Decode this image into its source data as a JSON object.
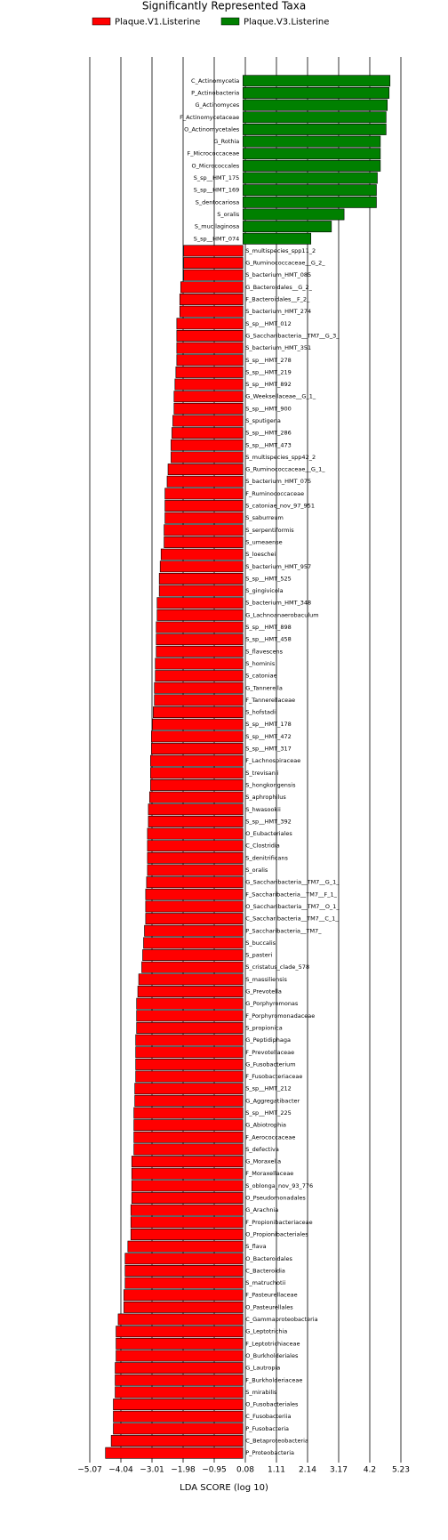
{
  "chart_data": {
    "type": "bar",
    "orientation": "horizontal",
    "title": "Significantly Represented Taxa",
    "xlabel": "LDA SCORE (log 10)",
    "categories": [
      "C_Actinomycetia",
      "P_Actinobacteria",
      "G_Actinomyces",
      "F_Actinomycetaceae",
      "O_Actinomycetales",
      "G_Rothia",
      "F_Micrococcaceae",
      "O_Micrococcales",
      "S_sp__HMT_175",
      "S_sp__HMT_169",
      "S_dentocariosa",
      "S_oralis",
      "S_mucilaginosa",
      "S_sp__HMT_074",
      "S_multispecies_spp11_2",
      "G_Ruminococcaceae__G_2_",
      "S_bacterium_HMT_085",
      "G_Bacteroidales__G_2_",
      "F_Bacteroidales__F_2_",
      "S_bacterium_HMT_274",
      "S_sp__HMT_012",
      "G_Saccharibacteria__TM7__G_3_",
      "S_bacterium_HMT_351",
      "S_sp__HMT_278",
      "S_sp__HMT_219",
      "S_sp__HMT_892",
      "G_Weeksellaceae__G_1_",
      "S_sp__HMT_900",
      "S_sputigena",
      "S_sp__HMT_286",
      "S_sp__HMT_473",
      "S_multispecies_spp42_2",
      "G_Ruminococcaceae__G_1_",
      "S_bacterium_HMT_075",
      "F_Ruminococcaceae",
      "S_catoniae_nov_97_951",
      "S_saburreum",
      "S_serpentiformis",
      "S_umeaense",
      "S_loeschei",
      "S_bacterium_HMT_957",
      "S_sp__HMT_525",
      "S_gingivicola",
      "S_bacterium_HMT_348",
      "G_Lachnoanaerobaculum",
      "S_sp__HMT_898",
      "S_sp__HMT_458",
      "S_flavescens",
      "S_hominis",
      "S_catoniae",
      "G_Tannerella",
      "F_Tannerellaceae",
      "S_hofstadii",
      "S_sp__HMT_178",
      "S_sp__HMT_472",
      "S_sp__HMT_317",
      "F_Lachnospiraceae",
      "S_trevisanii",
      "S_hongkongensis",
      "S_aphrophilus",
      "S_hwasookii",
      "S_sp__HMT_392",
      "O_Eubacteriales",
      "C_Clostridia",
      "S_denitrificans",
      "S_oralis",
      "G_Saccharibacteria__TM7__G_1_",
      "F_Saccharibacteria__TM7__F_1_",
      "O_Saccharibacteria__TM7__O_1_",
      "C_Saccharibacteria__TM7__C_1_",
      "P_Saccharibacteria__TM7_",
      "S_buccalis",
      "S_pasteri",
      "S_cristatus_clade_578",
      "S_massiliensis",
      "G_Prevotella",
      "G_Porphyromonas",
      "F_Porphyromonadaceae",
      "S_propionica",
      "G_Peptidiphaga",
      "F_Prevotellaceae",
      "G_Fusobacterium",
      "F_Fusobacteriaceae",
      "S_sp__HMT_212",
      "G_Aggregatibacter",
      "S_sp__HMT_225",
      "G_Abiotrophia",
      "F_Aerococcaceae",
      "S_defectiva",
      "G_Moraxella",
      "F_Moraxellaceae",
      "S_oblonga_nov_93_776",
      "O_Pseudomonadales",
      "G_Arachnia",
      "F_Propionibacteriaceae",
      "O_Propionibacteriales",
      "S_flava",
      "O_Bacteroidales",
      "C_Bacteroidia",
      "S_matruchotii",
      "F_Pasteurellaceae",
      "O_Pasteurellales",
      "C_Gammaproteobacteria",
      "G_Leptotrichia",
      "F_Leptotrichiaceae",
      "O_Burkholderiales",
      "G_Lautropia",
      "F_Burkholderiaceae",
      "S_mirabilis",
      "O_Fusobacteriales",
      "C_Fusobacteriia",
      "P_Fusobacteria",
      "C_Betaproteobacteria",
      "P_Proteobacteria"
    ],
    "series": [
      {
        "name": "Plaque.V1.Listerine",
        "color": "#ff0000",
        "values": [
          null,
          null,
          null,
          null,
          null,
          null,
          null,
          null,
          null,
          null,
          null,
          null,
          null,
          null,
          -1.96,
          -1.96,
          -1.96,
          -2.06,
          -2.09,
          -2.09,
          -2.19,
          -2.19,
          -2.19,
          -2.19,
          -2.22,
          -2.25,
          -2.28,
          -2.28,
          -2.32,
          -2.35,
          -2.38,
          -2.38,
          -2.48,
          -2.51,
          -2.58,
          -2.58,
          -2.58,
          -2.61,
          -2.61,
          -2.71,
          -2.74,
          -2.77,
          -2.77,
          -2.84,
          -2.84,
          -2.87,
          -2.87,
          -2.87,
          -2.9,
          -2.9,
          -2.93,
          -2.93,
          -2.97,
          -3.0,
          -3.03,
          -3.03,
          -3.06,
          -3.06,
          -3.06,
          -3.09,
          -3.13,
          -3.13,
          -3.16,
          -3.16,
          -3.16,
          -3.16,
          -3.19,
          -3.22,
          -3.22,
          -3.22,
          -3.26,
          -3.29,
          -3.32,
          -3.35,
          -3.45,
          -3.48,
          -3.52,
          -3.52,
          -3.52,
          -3.55,
          -3.55,
          -3.55,
          -3.55,
          -3.58,
          -3.58,
          -3.61,
          -3.61,
          -3.61,
          -3.61,
          -3.68,
          -3.68,
          -3.68,
          -3.68,
          -3.71,
          -3.71,
          -3.71,
          -3.81,
          -3.9,
          -3.9,
          -3.9,
          -3.94,
          -3.94,
          -4.13,
          -4.2,
          -4.2,
          -4.2,
          -4.23,
          -4.23,
          -4.23,
          -4.29,
          -4.29,
          -4.29,
          -4.36,
          -4.55
        ]
      },
      {
        "name": "Plaque.V3.Listerine",
        "color": "#008000",
        "values": [
          4.87,
          4.84,
          4.78,
          4.74,
          4.74,
          4.55,
          4.55,
          4.55,
          4.45,
          4.42,
          4.42,
          3.35,
          2.93,
          2.25,
          null,
          null,
          null,
          null,
          null,
          null,
          null,
          null,
          null,
          null,
          null,
          null,
          null,
          null,
          null,
          null,
          null,
          null,
          null,
          null,
          null,
          null,
          null,
          null,
          null,
          null,
          null,
          null,
          null,
          null,
          null,
          null,
          null,
          null,
          null,
          null,
          null,
          null,
          null,
          null,
          null,
          null,
          null,
          null,
          null,
          null,
          null,
          null,
          null,
          null,
          null,
          null,
          null,
          null,
          null,
          null,
          null,
          null,
          null,
          null,
          null,
          null,
          null,
          null,
          null,
          null,
          null,
          null,
          null,
          null,
          null,
          null,
          null,
          null,
          null,
          null,
          null,
          null,
          null,
          null,
          null,
          null,
          null,
          null,
          null,
          null,
          null,
          null,
          null,
          null,
          null,
          null,
          null,
          null,
          null,
          null,
          null,
          null,
          null,
          null
        ]
      }
    ],
    "xlim": [
      -5.07,
      5.23
    ],
    "xticks": [
      {
        "value": -5.07,
        "label": "−5.07"
      },
      {
        "value": -4.04,
        "label": "−4.04"
      },
      {
        "value": -3.01,
        "label": "−3.01"
      },
      {
        "value": -1.98,
        "label": "−1.98"
      },
      {
        "value": -0.95,
        "label": "−0.95"
      },
      0.08,
      1.11,
      2.14,
      3.17,
      4.2,
      5.23
    ],
    "grid": true
  }
}
